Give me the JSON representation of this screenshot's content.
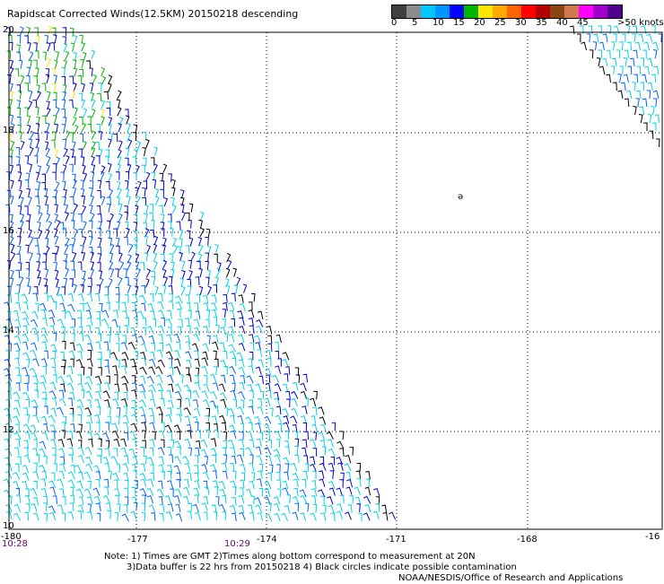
{
  "title": "Rapidscat Corrected Winds(12.5KM) 20150218 descending",
  "legend": {
    "colors": [
      "#404040",
      "#8c8c8c",
      "#00c8ff",
      "#0096ff",
      "#0000ff",
      "#00b400",
      "#ffe600",
      "#ffaa00",
      "#ff6400",
      "#ff0000",
      "#b40000",
      "#8b4513",
      "#d27850",
      "#ff00ff",
      "#a000c8",
      "#50008c"
    ],
    "labels": [
      "0",
      "5",
      "10",
      "15",
      "20",
      "25",
      "30",
      "35",
      "40",
      "45",
      ">50 knots"
    ]
  },
  "axes": {
    "lat_labels": [
      "20",
      "18",
      "16",
      "14",
      "12",
      "10"
    ],
    "lon_labels": [
      "-180",
      "-177",
      "-174",
      "-171",
      "-168",
      "-16"
    ]
  },
  "time_labels": [
    "10:28",
    "10:29"
  ],
  "notes": [
    "Note: 1) Times are GMT 2)Times along bottom correspond to measurement at 20N",
    "3)Data buffer is 22 hrs from 20150218 4) Black circles indicate possible contamination",
    "NOAA/NESDIS/Office of Research and Applications"
  ],
  "map_label": "ә",
  "colors": {
    "cyan": "#00d2e6",
    "blue": "#0000c8",
    "midblue": "#0060ff",
    "green": "#00b400",
    "yellow": "#ffe600",
    "black": "#000000"
  }
}
